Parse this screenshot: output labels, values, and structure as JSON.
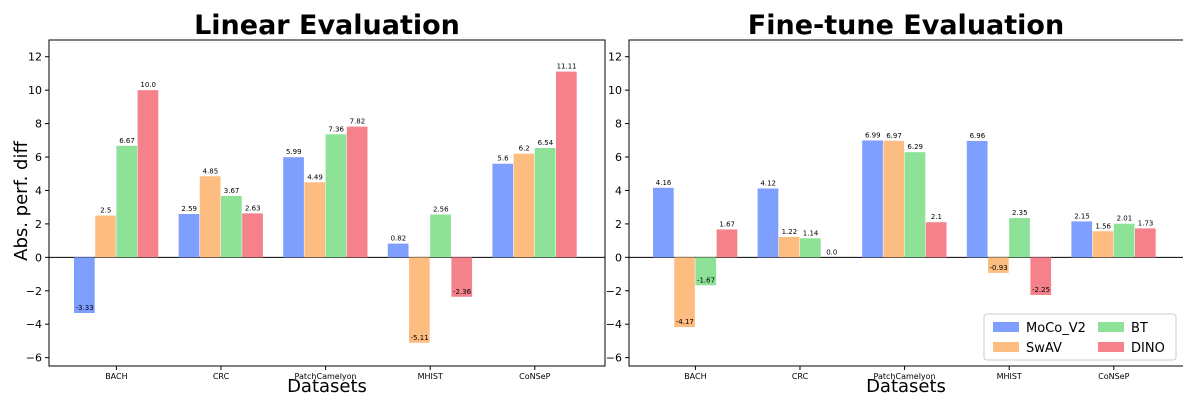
{
  "chart_data": [
    {
      "type": "bar",
      "title": "Linear Evaluation",
      "xlabel": "Datasets",
      "ylabel": "Abs. perf. diff",
      "ylim": [
        -6.5,
        13
      ],
      "yticks": [
        -6,
        -4,
        -2,
        0,
        2,
        4,
        6,
        8,
        10,
        12
      ],
      "categories": [
        "BACH",
        "CRC",
        "PatchCamelyon",
        "MHIST",
        "CoNSeP"
      ],
      "series": [
        {
          "name": "MoCo_V2",
          "color": "#7f9ffe",
          "values": [
            -3.33,
            2.59,
            5.99,
            0.82,
            5.6
          ],
          "labels": [
            "-3.33",
            "2.59",
            "5.99",
            "0.82",
            "5.6"
          ]
        },
        {
          "name": "SwAV",
          "color": "#fdbd80",
          "values": [
            2.5,
            4.85,
            4.49,
            -5.11,
            6.2
          ],
          "labels": [
            "2.5",
            "4.85",
            "4.49",
            "-5.11",
            "6.2"
          ]
        },
        {
          "name": "BT",
          "color": "#8de297",
          "values": [
            6.67,
            3.67,
            7.36,
            2.56,
            6.54
          ],
          "labels": [
            "6.67",
            "3.67",
            "7.36",
            "2.56",
            "6.54"
          ]
        },
        {
          "name": "DINO",
          "color": "#f5828b",
          "values": [
            10.0,
            2.63,
            7.82,
            -2.36,
            11.11
          ],
          "labels": [
            "10.0",
            "2.63",
            "7.82",
            "-2.36",
            "11.11"
          ]
        }
      ],
      "legend": null
    },
    {
      "type": "bar",
      "title": "Fine-tune Evaluation",
      "xlabel": "Datasets",
      "ylabel": "",
      "ylim": [
        -6.5,
        13
      ],
      "yticks": [
        -6,
        -4,
        -2,
        0,
        2,
        4,
        6,
        8,
        10,
        12
      ],
      "categories": [
        "BACH",
        "CRC",
        "PatchCamelyon",
        "MHIST",
        "CoNSeP"
      ],
      "series": [
        {
          "name": "MoCo_V2",
          "color": "#7f9ffe",
          "values": [
            4.16,
            4.12,
            6.99,
            6.96,
            2.15
          ],
          "labels": [
            "4.16",
            "4.12",
            "6.99",
            "6.96",
            "2.15"
          ]
        },
        {
          "name": "SwAV",
          "color": "#fdbd80",
          "values": [
            -4.17,
            1.22,
            6.97,
            -0.93,
            1.56
          ],
          "labels": [
            "-4.17",
            "1.22",
            "6.97",
            "-0.93",
            "1.56"
          ]
        },
        {
          "name": "BT",
          "color": "#8de297",
          "values": [
            -1.67,
            1.14,
            6.29,
            2.35,
            2.01
          ],
          "labels": [
            "-1.67",
            "1.14",
            "6.29",
            "2.35",
            "2.01"
          ]
        },
        {
          "name": "DINO",
          "color": "#f5828b",
          "values": [
            1.67,
            0.0,
            2.1,
            -2.25,
            1.73
          ],
          "labels": [
            "1.67",
            "0.0",
            "2.1",
            "-2.25",
            "1.73"
          ]
        }
      ],
      "legend": "lower-right"
    }
  ]
}
